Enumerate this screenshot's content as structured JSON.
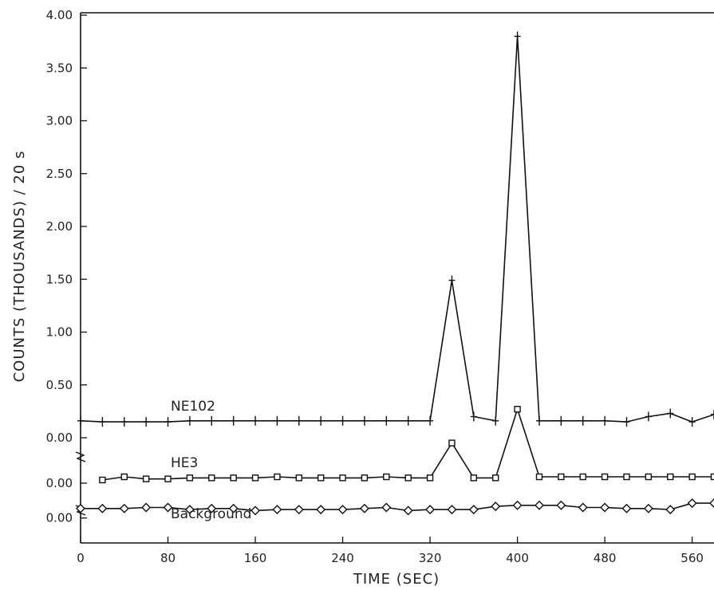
{
  "chart_data": {
    "type": "line",
    "title": "",
    "xlabel": "TIME (SEC)",
    "ylabel": "COUNTS (THOUSANDS) / 20 s",
    "xlim": [
      0,
      580
    ],
    "ylim": [
      0,
      4.0
    ],
    "grid": false,
    "x_ticks": [
      "0",
      "80",
      "160",
      "240",
      "320",
      "400",
      "480",
      "560"
    ],
    "y_ticks": [
      "4.00",
      "3.50",
      "3.00",
      "2.50",
      "2.00",
      "1.50",
      "1.00",
      "0.50",
      "0.00"
    ],
    "offset_zero_labels": [
      "0.00",
      "0.00"
    ],
    "series": [
      {
        "name": "NE102",
        "marker": "plus",
        "baseline": 0,
        "x": [
          0,
          20,
          40,
          60,
          80,
          100,
          120,
          140,
          160,
          180,
          200,
          220,
          240,
          260,
          280,
          300,
          320,
          340,
          360,
          380,
          400,
          420,
          440,
          460,
          480,
          500,
          520,
          540,
          560,
          580
        ],
        "y": [
          0.16,
          0.15,
          0.15,
          0.15,
          0.15,
          0.16,
          0.16,
          0.16,
          0.16,
          0.16,
          0.16,
          0.16,
          0.16,
          0.16,
          0.16,
          0.16,
          0.16,
          1.49,
          0.2,
          0.16,
          3.8,
          0.16,
          0.16,
          0.16,
          0.16,
          0.15,
          0.2,
          0.23,
          0.15,
          0.22
        ]
      },
      {
        "name": "HE3",
        "marker": "square",
        "baseline": -0.43,
        "x": [
          20,
          40,
          60,
          80,
          100,
          120,
          140,
          160,
          180,
          200,
          220,
          240,
          260,
          280,
          300,
          320,
          340,
          360,
          380,
          400,
          420,
          440,
          460,
          480,
          500,
          520,
          540,
          560,
          580
        ],
        "y": [
          0.03,
          0.06,
          0.04,
          0.04,
          0.05,
          0.05,
          0.05,
          0.05,
          0.06,
          0.05,
          0.05,
          0.05,
          0.05,
          0.06,
          0.05,
          0.05,
          0.38,
          0.05,
          0.05,
          0.7,
          0.06,
          0.06,
          0.06,
          0.06,
          0.06,
          0.06,
          0.06,
          0.06,
          0.06
        ]
      },
      {
        "name": "Background",
        "marker": "diamond",
        "baseline": -0.76,
        "x": [
          0,
          20,
          40,
          60,
          80,
          100,
          120,
          140,
          160,
          180,
          200,
          220,
          240,
          260,
          280,
          300,
          320,
          340,
          360,
          380,
          400,
          420,
          440,
          460,
          480,
          500,
          520,
          540,
          560,
          580
        ],
        "y": [
          0.09,
          0.09,
          0.09,
          0.1,
          0.1,
          0.08,
          0.09,
          0.09,
          0.07,
          0.08,
          0.08,
          0.08,
          0.08,
          0.09,
          0.1,
          0.07,
          0.08,
          0.08,
          0.08,
          0.11,
          0.12,
          0.12,
          0.12,
          0.1,
          0.1,
          0.09,
          0.09,
          0.08,
          0.14,
          0.14
        ]
      }
    ]
  }
}
